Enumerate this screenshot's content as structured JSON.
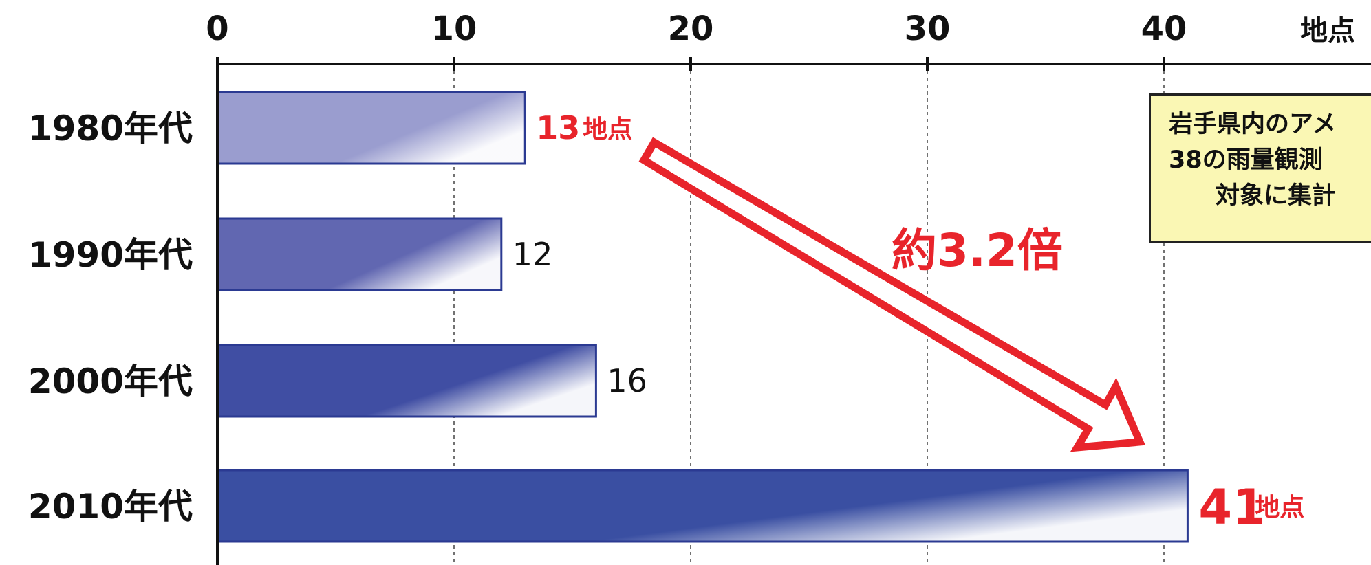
{
  "chart_data": {
    "type": "bar",
    "orientation": "horizontal",
    "categories": [
      "1980年代",
      "1990年代",
      "2000年代",
      "2010年代"
    ],
    "values": [
      13,
      12,
      16,
      41
    ],
    "value_labels": [
      "13",
      "12",
      "16",
      "41"
    ],
    "value_unit_labels": [
      "地点",
      "",
      "",
      "地点"
    ],
    "highlighted": [
      true,
      false,
      false,
      true
    ],
    "xlim": [
      0,
      45
    ],
    "x_ticks": [
      0,
      10,
      20,
      30,
      40
    ],
    "x_tick_labels": [
      "0",
      "10",
      "20",
      "30",
      "40"
    ],
    "x_unit": "地点",
    "grid": "dashed vertical",
    "annotation": "約3.2倍",
    "note": [
      "岩手県内のアメ",
      "38の雨量観測",
      "対象に集計"
    ]
  },
  "colors": {
    "bars": [
      "#9a9dcf",
      "#6167b1",
      "#404ea3",
      "#3a4fa2"
    ],
    "bar_border": "#2b3a92",
    "highlight": "#e8242b",
    "note_bg": "#faf7b4"
  }
}
